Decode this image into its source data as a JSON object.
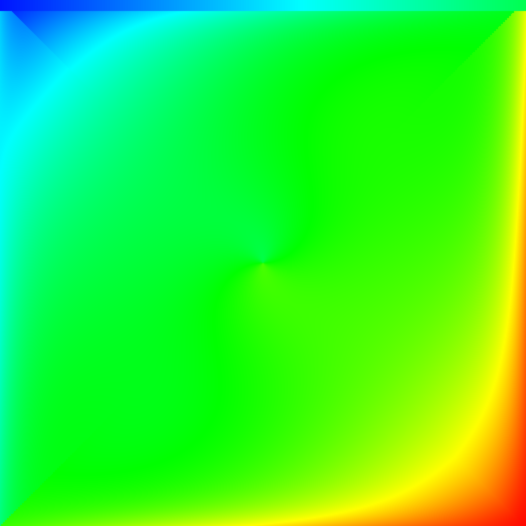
{
  "image": {
    "kind": "scalar field visualization",
    "colormap": "rainbow",
    "colormap_stops": [
      "#0000ff",
      "#00ffff",
      "#00ff00",
      "#ffff00",
      "#ff0000"
    ],
    "low_value_corner": "top-left",
    "high_value_corner": "bottom-right",
    "pattern": "swirl"
  }
}
